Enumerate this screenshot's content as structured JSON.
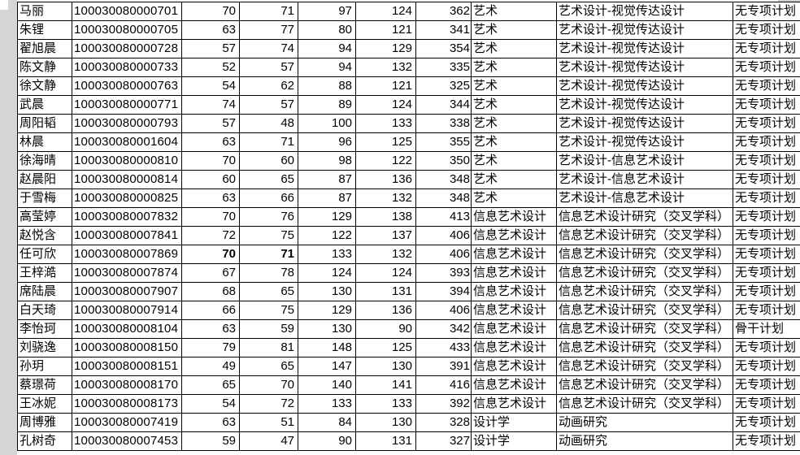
{
  "colors": {
    "margin_gray": "#d6d6d6",
    "scroll_thumb_gray": "#cfcfcf",
    "grid_line": "#000000",
    "cell_background": "#ffffff",
    "text": "#000000"
  },
  "table": {
    "columns": [
      {
        "key": "name",
        "align": "left"
      },
      {
        "key": "id",
        "align": "left"
      },
      {
        "key": "score1",
        "align": "right"
      },
      {
        "key": "score2",
        "align": "right"
      },
      {
        "key": "score3",
        "align": "right"
      },
      {
        "key": "score4",
        "align": "right"
      },
      {
        "key": "total",
        "align": "right"
      },
      {
        "key": "category",
        "align": "left"
      },
      {
        "key": "direction",
        "align": "left"
      },
      {
        "key": "plan",
        "align": "left"
      }
    ],
    "rows": [
      {
        "name": "马丽",
        "id": "100030080000701",
        "score1": 70,
        "score2": 71,
        "score3": 97,
        "score4": 124,
        "total": 362,
        "category": "艺术",
        "direction": "艺术设计-视觉传达设计",
        "plan": "无专项计划"
      },
      {
        "name": "朱锂",
        "id": "100030080000705",
        "score1": 63,
        "score2": 77,
        "score3": 80,
        "score4": 121,
        "total": 341,
        "category": "艺术",
        "direction": "艺术设计-视觉传达设计",
        "plan": "无专项计划"
      },
      {
        "name": "翟旭晨",
        "id": "100030080000728",
        "score1": 57,
        "score2": 74,
        "score3": 94,
        "score4": 129,
        "total": 354,
        "category": "艺术",
        "direction": "艺术设计-视觉传达设计",
        "plan": "无专项计划"
      },
      {
        "name": "陈文静",
        "id": "100030080000733",
        "score1": 52,
        "score2": 57,
        "score3": 94,
        "score4": 132,
        "total": 335,
        "category": "艺术",
        "direction": "艺术设计-视觉传达设计",
        "plan": "无专项计划"
      },
      {
        "name": "徐文静",
        "id": "100030080000763",
        "score1": 54,
        "score2": 62,
        "score3": 88,
        "score4": 121,
        "total": 325,
        "category": "艺术",
        "direction": "艺术设计-视觉传达设计",
        "plan": "无专项计划"
      },
      {
        "name": "武晨",
        "id": "100030080000771",
        "score1": 74,
        "score2": 57,
        "score3": 89,
        "score4": 124,
        "total": 344,
        "category": "艺术",
        "direction": "艺术设计-视觉传达设计",
        "plan": "无专项计划"
      },
      {
        "name": "周阳韬",
        "id": "100030080000793",
        "score1": 57,
        "score2": 48,
        "score3": 100,
        "score4": 133,
        "total": 338,
        "category": "艺术",
        "direction": "艺术设计-视觉传达设计",
        "plan": "无专项计划"
      },
      {
        "name": "林晨",
        "id": "100030080001604",
        "score1": 63,
        "score2": 71,
        "score3": 96,
        "score4": 125,
        "total": 355,
        "category": "艺术",
        "direction": "艺术设计-视觉传达设计",
        "plan": "无专项计划"
      },
      {
        "name": "徐海晴",
        "id": "100030080000810",
        "score1": 70,
        "score2": 60,
        "score3": 98,
        "score4": 122,
        "total": 350,
        "category": "艺术",
        "direction": "艺术设计-信息艺术设计",
        "plan": "无专项计划"
      },
      {
        "name": "赵晨阳",
        "id": "100030080000814",
        "score1": 60,
        "score2": 65,
        "score3": 87,
        "score4": 136,
        "total": 348,
        "category": "艺术",
        "direction": "艺术设计-信息艺术设计",
        "plan": "无专项计划"
      },
      {
        "name": "于雪梅",
        "id": "100030080000825",
        "score1": 63,
        "score2": 66,
        "score3": 87,
        "score4": 132,
        "total": 348,
        "category": "艺术",
        "direction": "艺术设计-信息艺术设计",
        "plan": "无专项计划"
      },
      {
        "name": "高莹婷",
        "id": "100030080007832",
        "score1": 70,
        "score2": 76,
        "score3": 129,
        "score4": 138,
        "total": 413,
        "category": "信息艺术设计",
        "direction": "信息艺术设计研究（交叉学科）",
        "plan": "无专项计划"
      },
      {
        "name": "赵悦含",
        "id": "100030080007841",
        "score1": 72,
        "score2": 75,
        "score3": 122,
        "score4": 137,
        "total": 406,
        "category": "信息艺术设计",
        "direction": "信息艺术设计研究（交叉学科）",
        "plan": "无专项计划"
      },
      {
        "name": "任可欣",
        "id": "100030080007869",
        "score1": 70,
        "score2": 71,
        "score3": 133,
        "score4": 132,
        "total": 406,
        "category": "信息艺术设计",
        "direction": "信息艺术设计研究（交叉学科）",
        "plan": "无专项计划",
        "bold": [
          "score1",
          "score2"
        ]
      },
      {
        "name": "王梓澔",
        "id": "100030080007874",
        "score1": 67,
        "score2": 78,
        "score3": 124,
        "score4": 124,
        "total": 393,
        "category": "信息艺术设计",
        "direction": "信息艺术设计研究（交叉学科）",
        "plan": "无专项计划"
      },
      {
        "name": "席陆晨",
        "id": "100030080007907",
        "score1": 68,
        "score2": 65,
        "score3": 130,
        "score4": 131,
        "total": 394,
        "category": "信息艺术设计",
        "direction": "信息艺术设计研究（交叉学科）",
        "plan": "无专项计划"
      },
      {
        "name": "白天琦",
        "id": "100030080007914",
        "score1": 66,
        "score2": 75,
        "score3": 129,
        "score4": 136,
        "total": 406,
        "category": "信息艺术设计",
        "direction": "信息艺术设计研究（交叉学科）",
        "plan": "无专项计划"
      },
      {
        "name": "李怡珂",
        "id": "100030080008104",
        "score1": 63,
        "score2": 59,
        "score3": 130,
        "score4": 90,
        "total": 342,
        "category": "信息艺术设计",
        "direction": "信息艺术设计研究（交叉学科）",
        "plan": "骨干计划"
      },
      {
        "name": "刘骁逸",
        "id": "100030080008150",
        "score1": 79,
        "score2": 81,
        "score3": 148,
        "score4": 125,
        "total": 433,
        "category": "信息艺术设计",
        "direction": "信息艺术设计研究（交叉学科）",
        "plan": "无专项计划"
      },
      {
        "name": "孙玥",
        "id": "100030080008151",
        "score1": 49,
        "score2": 65,
        "score3": 147,
        "score4": 130,
        "total": 391,
        "category": "信息艺术设计",
        "direction": "信息艺术设计研究（交叉学科）",
        "plan": "无专项计划"
      },
      {
        "name": "蔡璟荷",
        "id": "100030080008170",
        "score1": 65,
        "score2": 70,
        "score3": 140,
        "score4": 141,
        "total": 416,
        "category": "信息艺术设计",
        "direction": "信息艺术设计研究（交叉学科）",
        "plan": "无专项计划"
      },
      {
        "name": "王冰妮",
        "id": "100030080008173",
        "score1": 54,
        "score2": 72,
        "score3": 133,
        "score4": 133,
        "total": 392,
        "category": "信息艺术设计",
        "direction": "信息艺术设计研究（交叉学科）",
        "plan": "无专项计划"
      },
      {
        "name": "周博雅",
        "id": "100030080007419",
        "score1": 63,
        "score2": 51,
        "score3": 84,
        "score4": 130,
        "total": 328,
        "category": "设计学",
        "direction": "动画研究",
        "plan": "无专项计划"
      },
      {
        "name": "孔树奇",
        "id": "100030080007453",
        "score1": 59,
        "score2": 47,
        "score3": 90,
        "score4": 131,
        "total": 327,
        "category": "设计学",
        "direction": "动画研究",
        "plan": "无专项计划"
      }
    ]
  }
}
